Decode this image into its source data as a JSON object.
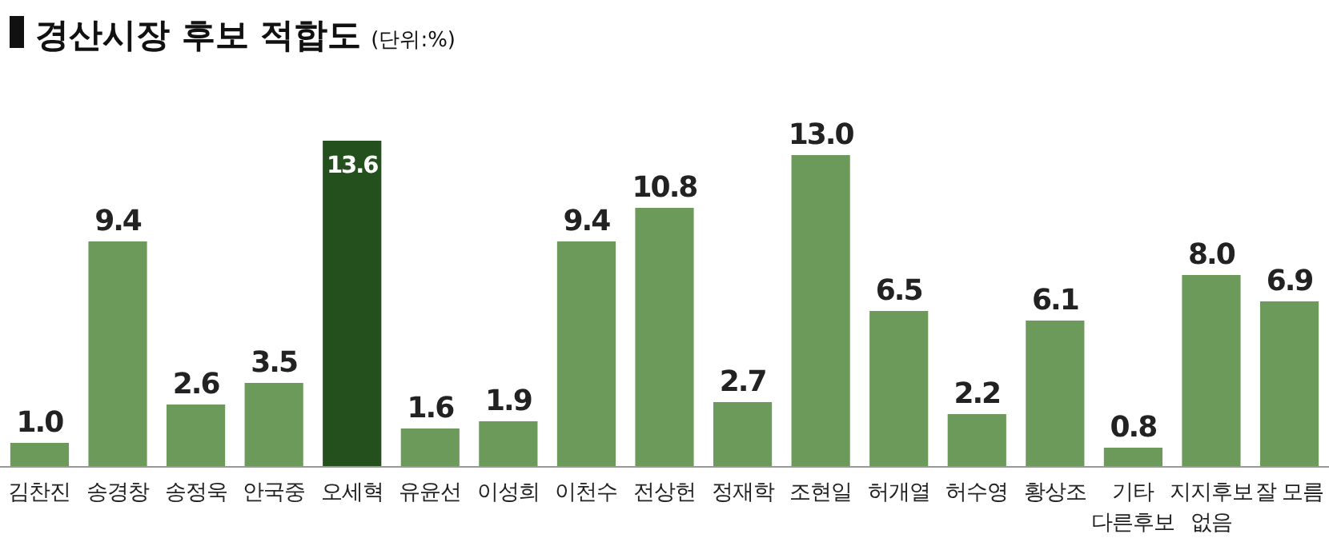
{
  "chart_data": {
    "type": "bar",
    "title": "경산시장 후보 적합도",
    "subtitle": "(단위:%)",
    "categories": [
      "김찬진",
      "송경창",
      "송정욱",
      "안국중",
      "오세혁",
      "유윤선",
      "이성희",
      "이천수",
      "전상헌",
      "정재학",
      "조현일",
      "허개열",
      "허수영",
      "황상조",
      "기타\n다른후보",
      "지지후보\n없음",
      "잘 모름"
    ],
    "values": [
      1.0,
      9.4,
      2.6,
      3.5,
      13.6,
      1.6,
      1.9,
      9.4,
      10.8,
      2.7,
      13.0,
      6.5,
      2.2,
      6.1,
      0.8,
      8.0,
      6.9
    ],
    "value_labels": [
      "1.0",
      "9.4",
      "2.6",
      "3.5",
      "13.6",
      "1.6",
      "1.9",
      "9.4",
      "10.8",
      "2.7",
      "13.0",
      "6.5",
      "2.2",
      "6.1",
      "0.8",
      "8.0",
      "6.9"
    ],
    "colors": [
      "#6b9a5a",
      "#6b9a5a",
      "#6b9a5a",
      "#6b9a5a",
      "#23501c",
      "#6b9a5a",
      "#6b9a5a",
      "#6b9a5a",
      "#6b9a5a",
      "#6b9a5a",
      "#6b9a5a",
      "#6b9a5a",
      "#6b9a5a",
      "#6b9a5a",
      "#6b9a5a",
      "#6b9a5a",
      "#6b9a5a"
    ]
  }
}
